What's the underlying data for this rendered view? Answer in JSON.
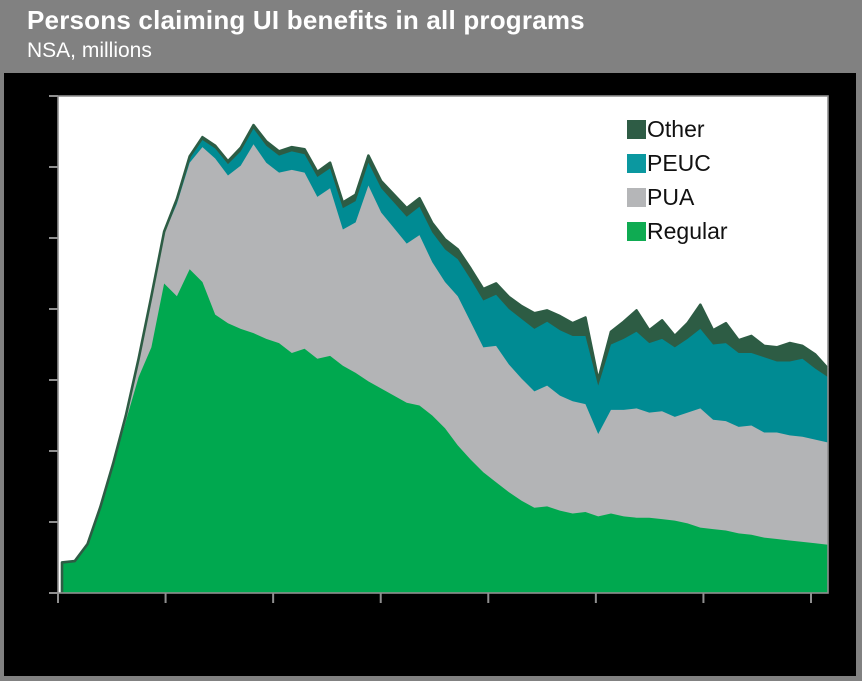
{
  "header": {
    "title": "Persons claiming UI benefits in all programs",
    "subtitle": "NSA, millions"
  },
  "legend": {
    "items": [
      {
        "label": "Other",
        "color": "#2E5C45"
      },
      {
        "label": "PEUC",
        "color": "#0B98A0"
      },
      {
        "label": "PUA",
        "color": "#B5B6B8"
      },
      {
        "label": "Regular",
        "color": "#0FAB52"
      }
    ]
  },
  "colors": {
    "frame_gray": "#818181",
    "outer_background": "#000000",
    "plot_background": "#FFFFFF",
    "axis_and_ticks": "#8F8F8F",
    "total_outline": "#2D5C44",
    "area_regular": "#00A84F",
    "area_pua": "#B3B4B6",
    "area_peuc": "#008B93",
    "area_other": "#2D5C44",
    "title_text": "#FFFFFF",
    "legend_text": "#111111"
  },
  "chart_data": {
    "type": "area",
    "stacked": true,
    "title": "Persons claiming UI benefits in all programs",
    "subtitle": "NSA, millions",
    "xlabel": "",
    "ylabel": "",
    "x_unit": "week-index",
    "x": [
      0,
      1,
      2,
      3,
      4,
      5,
      6,
      7,
      8,
      9,
      10,
      11,
      12,
      13,
      14,
      15,
      16,
      17,
      18,
      19,
      20,
      21,
      22,
      23,
      24,
      25,
      26,
      27,
      28,
      29,
      30,
      31,
      32,
      33,
      34,
      35,
      36,
      37,
      38,
      39,
      40,
      41,
      42,
      43,
      44,
      45,
      46,
      47,
      48,
      49,
      50,
      51,
      52,
      53,
      54,
      55,
      56,
      57,
      58,
      59,
      60
    ],
    "x_tick_count": 8,
    "x_tick_labels": [],
    "ylim": [
      0,
      35
    ],
    "y_ticks": [
      0,
      5,
      10,
      15,
      20,
      25,
      30,
      35
    ],
    "y_tick_labels": [],
    "grid": false,
    "legend_position": "top-right-inside",
    "stack_order_bottom_to_top": [
      "Regular",
      "PUA",
      "PEUC",
      "Other"
    ],
    "series": [
      {
        "name": "Regular",
        "color": "#00A84F",
        "values": [
          2.1,
          2.2,
          3.4,
          6.0,
          9.0,
          12.1,
          15.2,
          17.3,
          21.8,
          20.9,
          22.8,
          21.9,
          19.6,
          19.0,
          18.6,
          18.3,
          17.9,
          17.6,
          16.9,
          17.2,
          16.5,
          16.7,
          16.0,
          15.5,
          14.9,
          14.4,
          13.9,
          13.4,
          13.2,
          12.5,
          11.6,
          10.4,
          9.4,
          8.5,
          7.8,
          7.1,
          6.5,
          6.0,
          6.1,
          5.8,
          5.6,
          5.7,
          5.4,
          5.6,
          5.4,
          5.3,
          5.3,
          5.2,
          5.1,
          4.9,
          4.6,
          4.5,
          4.4,
          4.2,
          4.1,
          3.9,
          3.8,
          3.7,
          3.6,
          3.5,
          3.4
        ]
      },
      {
        "name": "PUA",
        "color": "#B3B4B6",
        "values": [
          0,
          0,
          0,
          0,
          0,
          0.3,
          1.2,
          3.5,
          3.5,
          6.5,
          7.5,
          9.5,
          11.0,
          10.4,
          11.5,
          13.3,
          12.4,
          12.0,
          12.9,
          12.4,
          11.4,
          11.8,
          9.6,
          10.6,
          13.8,
          12.4,
          11.8,
          11.2,
          12.0,
          10.8,
          10.3,
          10.5,
          9.7,
          8.8,
          9.6,
          9.0,
          8.6,
          8.2,
          8.5,
          8.1,
          7.9,
          7.6,
          5.8,
          7.3,
          7.5,
          7.7,
          7.4,
          7.6,
          7.3,
          7.8,
          8.4,
          7.7,
          7.7,
          7.5,
          7.7,
          7.4,
          7.5,
          7.4,
          7.4,
          7.3,
          7.2
        ]
      },
      {
        "name": "PEUC",
        "color": "#008B93",
        "values": [
          0,
          0,
          0,
          0,
          0,
          0,
          0,
          0,
          0,
          0.2,
          0.3,
          0.5,
          0.7,
          0.8,
          1.0,
          1.1,
          1.2,
          1.2,
          1.3,
          1.3,
          1.4,
          1.4,
          1.5,
          1.5,
          1.6,
          1.7,
          1.8,
          1.9,
          2.0,
          2.1,
          2.3,
          2.6,
          3.0,
          3.3,
          3.6,
          3.9,
          4.2,
          4.4,
          4.5,
          4.6,
          4.6,
          4.8,
          3.4,
          4.6,
          5.0,
          5.4,
          4.9,
          5.1,
          4.9,
          5.2,
          5.6,
          5.3,
          5.5,
          5.2,
          5.1,
          5.3,
          5.0,
          5.2,
          5.5,
          5.0,
          4.6
        ]
      },
      {
        "name": "Other",
        "color": "#2D5C44",
        "values": [
          0.05,
          0.05,
          0.05,
          0.05,
          0.1,
          0.1,
          0.1,
          0.1,
          0.15,
          0.15,
          0.15,
          0.2,
          0.2,
          0.2,
          0.25,
          0.25,
          0.3,
          0.3,
          0.3,
          0.35,
          0.35,
          0.4,
          0.4,
          0.45,
          0.5,
          0.5,
          0.55,
          0.6,
          0.6,
          0.65,
          0.7,
          0.7,
          0.75,
          0.8,
          0.8,
          0.85,
          0.9,
          1.1,
          0.8,
          1.0,
          0.9,
          1.3,
          0.4,
          0.9,
          1.2,
          1.5,
          0.9,
          1.3,
          0.8,
          1.1,
          1.7,
          1.0,
          1.4,
          0.9,
          1.2,
          0.8,
          1.0,
          1.3,
          0.9,
          1.0,
          0.6
        ]
      }
    ]
  }
}
